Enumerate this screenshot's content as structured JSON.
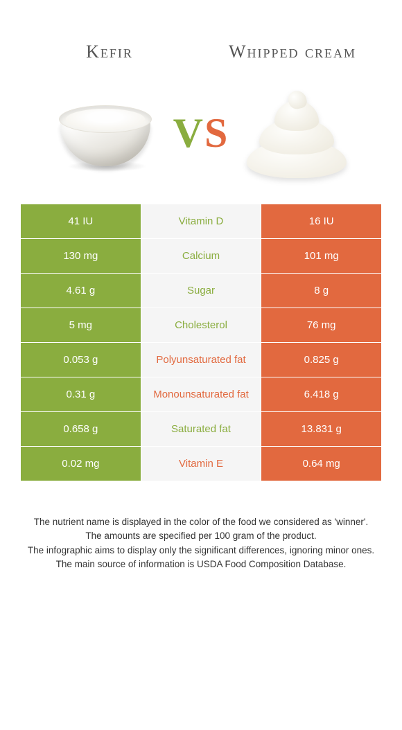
{
  "header": {
    "left_title": "Kefir",
    "right_title": "Whipped cream",
    "vs_v": "V",
    "vs_s": "S"
  },
  "colors": {
    "left_bar": "#8aad3f",
    "right_bar": "#e2693f",
    "mid_bg": "#f5f5f5",
    "text": "#333333"
  },
  "table": {
    "type": "comparison-table",
    "rows": [
      {
        "left": "41 IU",
        "label": "Vitamin D",
        "right": "16 IU",
        "winner": "left"
      },
      {
        "left": "130 mg",
        "label": "Calcium",
        "right": "101 mg",
        "winner": "left"
      },
      {
        "left": "4.61 g",
        "label": "Sugar",
        "right": "8 g",
        "winner": "left"
      },
      {
        "left": "5 mg",
        "label": "Cholesterol",
        "right": "76 mg",
        "winner": "left"
      },
      {
        "left": "0.053 g",
        "label": "Polyunsaturated fat",
        "right": "0.825 g",
        "winner": "right"
      },
      {
        "left": "0.31 g",
        "label": "Monounsaturated fat",
        "right": "6.418 g",
        "winner": "right"
      },
      {
        "left": "0.658 g",
        "label": "Saturated fat",
        "right": "13.831 g",
        "winner": "left"
      },
      {
        "left": "0.02 mg",
        "label": "Vitamin E",
        "right": "0.64 mg",
        "winner": "right"
      }
    ]
  },
  "footer": {
    "line1": "The nutrient name is displayed in the color of the food we considered as 'winner'.",
    "line2": "The amounts are specified per 100 gram of the product.",
    "line3": "The infographic aims to display only the significant differences, ignoring minor ones.",
    "line4": "The main source of information is USDA Food Composition Database."
  }
}
